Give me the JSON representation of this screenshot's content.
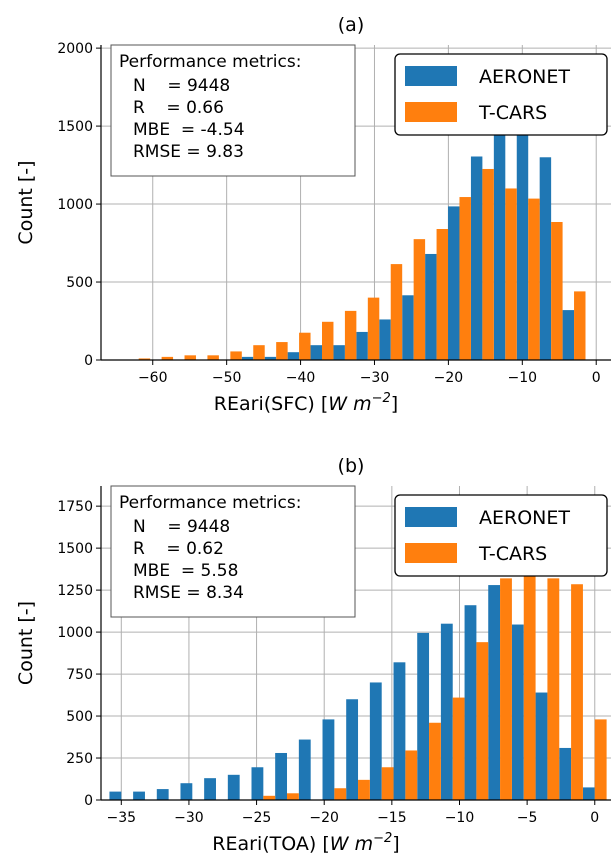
{
  "colors": {
    "aeronet": "#1f77b4",
    "tcars": "#ff7f0e",
    "grid": "#b0b0b0"
  },
  "chart_data": [
    {
      "type": "bar",
      "title": "(a)",
      "xlabel": "REari(SFC) [W m⁻²]",
      "xlabel_main": "REari(SFC) [",
      "xlabel_unit": "W m",
      "xlabel_exp": "−2",
      "xlabel_close": "]",
      "ylabel": "Count [-]",
      "xlim": [
        -67,
        2
      ],
      "ylim": [
        0,
        2020
      ],
      "xticks": [
        -60,
        -50,
        -40,
        -30,
        -20,
        -10,
        0
      ],
      "xtick_labels": [
        "−60",
        "−50",
        "−40",
        "−30",
        "−20",
        "−10",
        "0"
      ],
      "yticks": [
        0,
        500,
        1000,
        1500,
        2000
      ],
      "ytick_labels": [
        "0",
        "500",
        "1000",
        "1500",
        "2000"
      ],
      "grid": true,
      "legend_position": "top-right",
      "bin_width": 3.1,
      "series": [
        {
          "name": "AERONET",
          "x": [
            -65.0,
            -61.9,
            -58.8,
            -55.7,
            -52.6,
            -49.5,
            -46.4,
            -43.3,
            -40.2,
            -37.1,
            -34.0,
            -30.9,
            -27.8,
            -24.7,
            -21.6,
            -18.5,
            -15.4,
            -12.3,
            -9.2,
            -6.1,
            -3.0
          ],
          "values": [
            0,
            0,
            0,
            0,
            0,
            0,
            20,
            20,
            50,
            95,
            95,
            180,
            260,
            415,
            680,
            985,
            1305,
            1440,
            1440,
            1300,
            320
          ]
        },
        {
          "name": "T-CARS",
          "x": [
            -65.0,
            -61.9,
            -58.8,
            -55.7,
            -52.6,
            -49.5,
            -46.4,
            -43.3,
            -40.2,
            -37.1,
            -34.0,
            -30.9,
            -27.8,
            -24.7,
            -21.6,
            -18.5,
            -15.4,
            -12.3,
            -9.2,
            -6.1,
            -3.0
          ],
          "values": [
            0,
            10,
            20,
            30,
            30,
            55,
            95,
            115,
            175,
            245,
            315,
            400,
            615,
            775,
            840,
            1045,
            1225,
            1100,
            1035,
            885,
            440
          ]
        }
      ],
      "metrics": {
        "heading": "Performance metrics:",
        "lines": [
          "N    = 9448",
          "R    = 0.66",
          "MBE  = -4.54",
          "RMSE = 9.83"
        ]
      }
    },
    {
      "type": "bar",
      "title": "(b)",
      "xlabel": "REari(TOA) [W m⁻²]",
      "xlabel_main": "REari(TOA) [",
      "xlabel_unit": "W m",
      "xlabel_exp": "−2",
      "xlabel_close": "]",
      "ylabel": "Count [-]",
      "xlim": [
        -36.5,
        1.2
      ],
      "ylim": [
        0,
        1870
      ],
      "xticks": [
        -35,
        -30,
        -25,
        -20,
        -15,
        -10,
        -5,
        0
      ],
      "xtick_labels": [
        "−35",
        "−30",
        "−25",
        "−20",
        "−15",
        "−10",
        "−5",
        "0"
      ],
      "yticks": [
        0,
        250,
        500,
        750,
        1000,
        1250,
        1500,
        1750
      ],
      "ytick_labels": [
        "0",
        "250",
        "500",
        "750",
        "1000",
        "1250",
        "1500",
        "1750"
      ],
      "grid": true,
      "legend_position": "top-right",
      "bin_width": 1.75,
      "series": [
        {
          "name": "AERONET",
          "x": [
            -35.0,
            -33.25,
            -31.5,
            -29.75,
            -28.0,
            -26.25,
            -24.5,
            -22.75,
            -21.0,
            -19.25,
            -17.5,
            -15.75,
            -14.0,
            -12.25,
            -10.5,
            -8.75,
            -7.0,
            -5.25,
            -3.5,
            -1.75,
            0.0
          ],
          "values": [
            50,
            50,
            65,
            100,
            130,
            150,
            195,
            280,
            360,
            480,
            600,
            700,
            820,
            995,
            1050,
            1160,
            1280,
            1045,
            640,
            310,
            75
          ]
        },
        {
          "name": "T-CARS",
          "x": [
            -35.0,
            -33.25,
            -31.5,
            -29.75,
            -28.0,
            -26.25,
            -24.5,
            -22.75,
            -21.0,
            -19.25,
            -17.5,
            -15.75,
            -14.0,
            -12.25,
            -10.5,
            -8.75,
            -7.0,
            -5.25,
            -3.5,
            -1.75,
            0.0
          ],
          "values": [
            0,
            0,
            0,
            0,
            0,
            0,
            25,
            40,
            0,
            70,
            120,
            195,
            295,
            460,
            610,
            940,
            1320,
            1360,
            1320,
            1285,
            480
          ]
        }
      ],
      "metrics": {
        "heading": "Performance metrics:",
        "lines": [
          "N    = 9448",
          "R    = 0.62",
          "MBE  = 5.58",
          "RMSE = 8.34"
        ]
      }
    }
  ]
}
